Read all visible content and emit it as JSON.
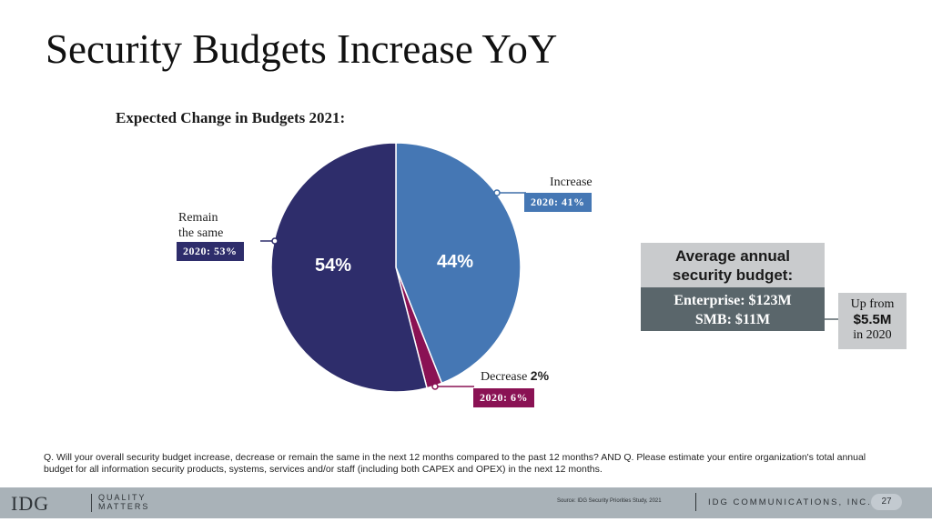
{
  "slide_title": "Security Budgets Increase YoY",
  "chart_data": {
    "type": "pie",
    "title": "Expected Change in Budgets 2021:",
    "slices": [
      {
        "name": "Increase",
        "value": 44,
        "label": "44%",
        "prior": "2020: 41%",
        "color": "#4577b4"
      },
      {
        "name": "Decrease",
        "value": 2,
        "label": "2%",
        "prior": "2020: 6%",
        "color": "#8a1254"
      },
      {
        "name": "Remain the same",
        "value": 54,
        "label": "54%",
        "prior": "2020: 53%",
        "color": "#2e2d6b"
      }
    ]
  },
  "labels": {
    "increase": "Increase",
    "decrease": "Decrease",
    "remain_line1": "Remain",
    "remain_line2": "the same"
  },
  "budget": {
    "heading_line1": "Average annual",
    "heading_line2": "security budget:",
    "enterprise": "Enterprise: $123M",
    "smb": "SMB: $11M",
    "up_line1": "Up from",
    "up_value": "$5.5M",
    "up_line3": "in 2020"
  },
  "question": "Q. Will your overall security budget increase, decrease or remain the same in the next 12 months compared to the past 12 months? AND Q. Please estimate your entire organization's total annual budget for all information security products, systems, services and/or staff (including both CAPEX and OPEX) in the next 12 months.",
  "footer": {
    "logo": "IDG",
    "tagline_line1": "QUALITY",
    "tagline_line2": "MATTERS",
    "source": "Source: IDG Security Priorities Study, 2021",
    "company": "IDG COMMUNICATIONS, INC.",
    "page": "27"
  }
}
